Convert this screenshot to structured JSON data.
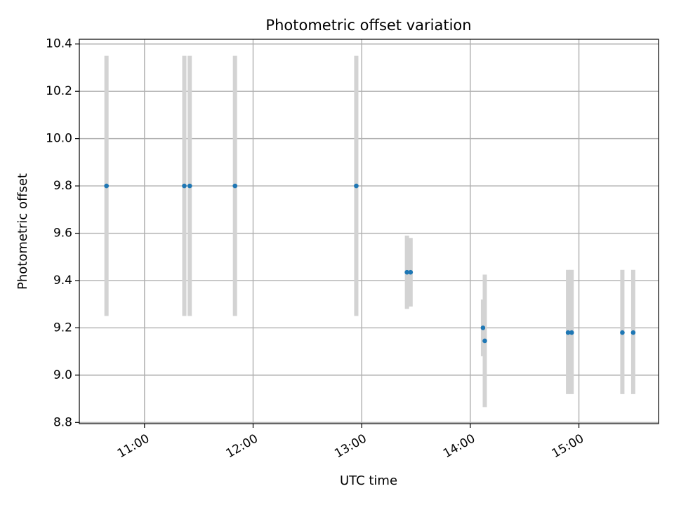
{
  "chart_data": {
    "type": "scatter",
    "title": "Photometric offset variation",
    "xlabel": "UTC time",
    "ylabel": "Photometric offset",
    "xlim": [
      "10:24",
      "15:44"
    ],
    "ylim": [
      8.795,
      10.42
    ],
    "grid": true,
    "x_ticks": [
      "11:00",
      "12:00",
      "13:00",
      "14:00",
      "15:00"
    ],
    "y_ticks": [
      "8.8",
      "9.0",
      "9.2",
      "9.4",
      "9.6",
      "9.8",
      "10.0",
      "10.2",
      "10.4"
    ],
    "series": [
      {
        "points": [
          {
            "x": "10:39",
            "y": 9.8,
            "err_low": 9.25,
            "err_high": 10.35
          },
          {
            "x": "11:22",
            "y": 9.8,
            "err_low": 9.25,
            "err_high": 10.35
          },
          {
            "x": "11:25",
            "y": 9.8,
            "err_low": 9.25,
            "err_high": 10.35
          },
          {
            "x": "11:50",
            "y": 9.8,
            "err_low": 9.25,
            "err_high": 10.35
          },
          {
            "x": "12:57",
            "y": 9.8,
            "err_low": 9.25,
            "err_high": 10.35
          },
          {
            "x": "13:25",
            "y": 9.435,
            "err_low": 9.28,
            "err_high": 9.59
          },
          {
            "x": "13:27",
            "y": 9.435,
            "err_low": 9.29,
            "err_high": 9.58
          },
          {
            "x": "14:07",
            "y": 9.2,
            "err_low": 9.08,
            "err_high": 9.32
          },
          {
            "x": "14:08",
            "y": 9.145,
            "err_low": 8.865,
            "err_high": 9.425
          },
          {
            "x": "14:54",
            "y": 9.18,
            "err_low": 8.92,
            "err_high": 9.445
          },
          {
            "x": "14:56",
            "y": 9.18,
            "err_low": 8.92,
            "err_high": 9.445
          },
          {
            "x": "15:24",
            "y": 9.18,
            "err_low": 8.92,
            "err_high": 9.445
          },
          {
            "x": "15:30",
            "y": 9.18,
            "err_low": 8.92,
            "err_high": 9.445
          }
        ]
      }
    ],
    "colors": {
      "marker": "#1f77b4",
      "errorbar": "#d3d3d3",
      "grid": "#b0b0b0",
      "axes": "#000000"
    }
  }
}
